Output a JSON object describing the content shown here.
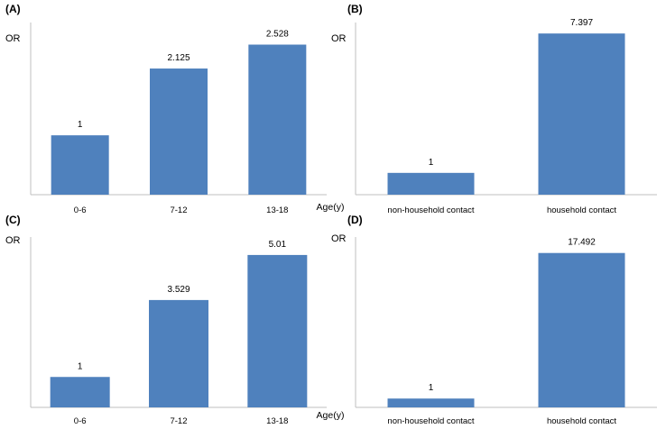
{
  "chart_data": [
    {
      "panel": "(A)",
      "type": "bar",
      "ylabel": "OR",
      "xlabel": "Age(y)",
      "categories": [
        "0-6",
        "7-12",
        "13-18"
      ],
      "values": [
        1,
        2.125,
        2.528
      ],
      "data_labels": [
        "1",
        "2.125",
        "2.528"
      ],
      "ylim": [
        0,
        2.9
      ],
      "bar_color": "#4f81bd",
      "grid": false
    },
    {
      "panel": "(B)",
      "type": "bar",
      "ylabel": "OR",
      "xlabel": "",
      "categories": [
        "non-household contact",
        "household contact"
      ],
      "values": [
        1,
        7.397
      ],
      "data_labels": [
        "1",
        "7.397"
      ],
      "ylim": [
        0,
        7.9
      ],
      "bar_color": "#4f81bd",
      "grid": false
    },
    {
      "panel": "(C)",
      "type": "bar",
      "ylabel": "OR",
      "xlabel": "Age(y)",
      "categories": [
        "0-6",
        "7-12",
        "13-18"
      ],
      "values": [
        1,
        3.529,
        5.01
      ],
      "data_labels": [
        "1",
        "3.529",
        "5.01"
      ],
      "ylim": [
        0,
        5.6
      ],
      "bar_color": "#4f81bd",
      "grid": false
    },
    {
      "panel": "(D)",
      "type": "bar",
      "ylabel": "OR",
      "xlabel": "",
      "categories": [
        "non-household contact",
        "household contact"
      ],
      "values": [
        1,
        17.492
      ],
      "data_labels": [
        "1",
        "17.492"
      ],
      "ylim": [
        0,
        19.3
      ],
      "bar_color": "#4f81bd",
      "grid": false
    }
  ]
}
